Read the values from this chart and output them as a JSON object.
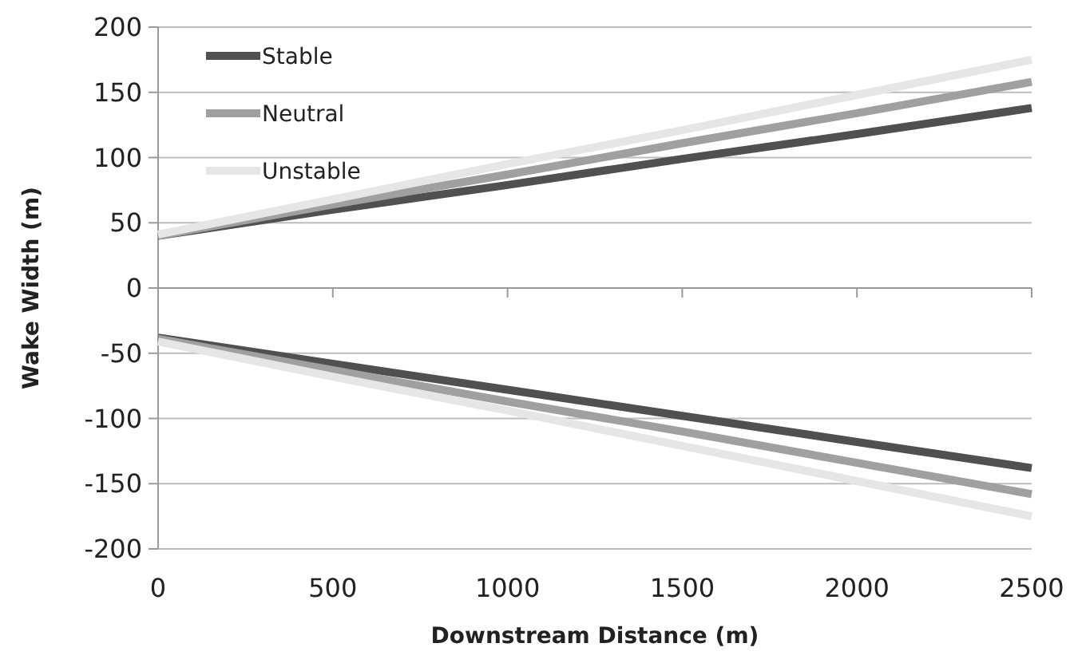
{
  "chart_data": {
    "type": "line",
    "xlabel": "Downstream Distance (m)",
    "ylabel": "Wake Width (m)",
    "x": [
      0,
      500,
      1000,
      1500,
      2000,
      2500
    ],
    "xlim": [
      0,
      2500
    ],
    "xticks": [
      0,
      500,
      1000,
      1500,
      2000,
      2500
    ],
    "ylim": [
      -200,
      200
    ],
    "yticks": [
      -200,
      -150,
      -100,
      -50,
      0,
      50,
      100,
      150,
      200
    ],
    "grid": "y",
    "legend": "top left",
    "line_style": "solid",
    "marker": "none",
    "series": [
      {
        "name": "Stable",
        "color": "#505050",
        "values": [
          40,
          60,
          79,
          99,
          118,
          138
        ]
      },
      {
        "name": "Neutral",
        "color": "#a0a0a0",
        "values": [
          40,
          64,
          87,
          111,
          134,
          158
        ]
      },
      {
        "name": "Unstable",
        "color": "#e6e6e6",
        "values": [
          41,
          68,
          95,
          121,
          148,
          175
        ]
      },
      {
        "color": "#505050",
        "values": [
          -38,
          -58,
          -78,
          -98,
          -118,
          -138
        ]
      },
      {
        "color": "#a0a0a0",
        "values": [
          -39,
          -63,
          -87,
          -110,
          -134,
          -158
        ]
      },
      {
        "color": "#e6e6e6",
        "values": [
          -41,
          -68,
          -94,
          -121,
          -148,
          -175
        ]
      }
    ]
  }
}
